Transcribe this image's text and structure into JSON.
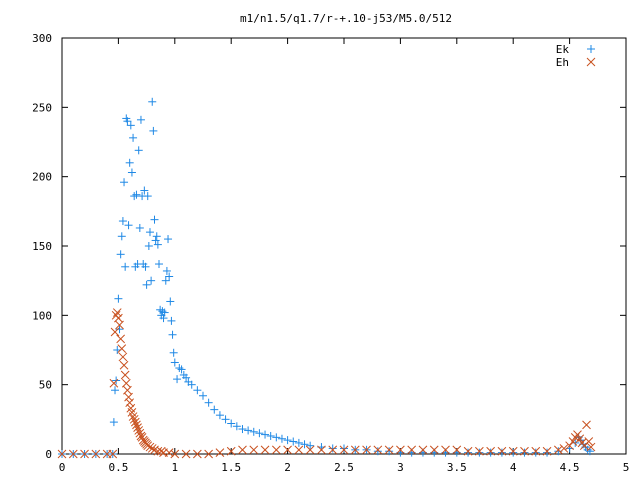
{
  "chart_data": {
    "type": "scatter",
    "title": "m1/n1.5/q1.7/r-+.10-j53/M5.0/512",
    "xlabel": "",
    "ylabel": "",
    "xlim": [
      0,
      5
    ],
    "ylim": [
      0,
      300
    ],
    "x_ticks": [
      "0",
      "0.5",
      "1",
      "1.5",
      "2",
      "2.5",
      "3",
      "3.5",
      "4",
      "4.5",
      "5"
    ],
    "y_ticks": [
      "0",
      "50",
      "100",
      "150",
      "200",
      "250",
      "300"
    ],
    "grid": false,
    "legend_position": "top-right",
    "series": [
      {
        "name": "Ek",
        "marker": "plus",
        "color": "#1E88E5",
        "points": [
          [
            0.0,
            0
          ],
          [
            0.1,
            0
          ],
          [
            0.2,
            0
          ],
          [
            0.3,
            0
          ],
          [
            0.4,
            0
          ],
          [
            0.45,
            0
          ],
          [
            0.46,
            23
          ],
          [
            0.47,
            46
          ],
          [
            0.48,
            53
          ],
          [
            0.49,
            75
          ],
          [
            0.5,
            112
          ],
          [
            0.51,
            90
          ],
          [
            0.52,
            144
          ],
          [
            0.53,
            157
          ],
          [
            0.54,
            168
          ],
          [
            0.55,
            196
          ],
          [
            0.56,
            135
          ],
          [
            0.57,
            242
          ],
          [
            0.58,
            240
          ],
          [
            0.59,
            165
          ],
          [
            0.6,
            210
          ],
          [
            0.61,
            237
          ],
          [
            0.62,
            203
          ],
          [
            0.63,
            228
          ],
          [
            0.64,
            186
          ],
          [
            0.65,
            135
          ],
          [
            0.66,
            187
          ],
          [
            0.67,
            137
          ],
          [
            0.68,
            219
          ],
          [
            0.69,
            163
          ],
          [
            0.7,
            241
          ],
          [
            0.71,
            186
          ],
          [
            0.72,
            137
          ],
          [
            0.73,
            190
          ],
          [
            0.74,
            135
          ],
          [
            0.75,
            122
          ],
          [
            0.76,
            186
          ],
          [
            0.77,
            150
          ],
          [
            0.78,
            160
          ],
          [
            0.79,
            125
          ],
          [
            0.8,
            254
          ],
          [
            0.81,
            233
          ],
          [
            0.82,
            169
          ],
          [
            0.83,
            154
          ],
          [
            0.84,
            157
          ],
          [
            0.85,
            151
          ],
          [
            0.86,
            137
          ],
          [
            0.87,
            104
          ],
          [
            0.88,
            100
          ],
          [
            0.89,
            103
          ],
          [
            0.9,
            98
          ],
          [
            0.91,
            102
          ],
          [
            0.92,
            125
          ],
          [
            0.93,
            132
          ],
          [
            0.94,
            155
          ],
          [
            0.95,
            128
          ],
          [
            0.96,
            110
          ],
          [
            0.97,
            96
          ],
          [
            0.98,
            86
          ],
          [
            0.99,
            73
          ],
          [
            1.0,
            66
          ],
          [
            1.02,
            54
          ],
          [
            1.04,
            62
          ],
          [
            1.06,
            61
          ],
          [
            1.08,
            57
          ],
          [
            1.1,
            55
          ],
          [
            1.12,
            52
          ],
          [
            1.15,
            50
          ],
          [
            1.2,
            46
          ],
          [
            1.25,
            42
          ],
          [
            1.3,
            37
          ],
          [
            1.35,
            32
          ],
          [
            1.4,
            28
          ],
          [
            1.45,
            25
          ],
          [
            1.5,
            22
          ],
          [
            1.55,
            20
          ],
          [
            1.6,
            18
          ],
          [
            1.65,
            17
          ],
          [
            1.7,
            16
          ],
          [
            1.75,
            15
          ],
          [
            1.8,
            14
          ],
          [
            1.85,
            13
          ],
          [
            1.9,
            12
          ],
          [
            1.95,
            11
          ],
          [
            2.0,
            10
          ],
          [
            2.05,
            9
          ],
          [
            2.1,
            8
          ],
          [
            2.15,
            7
          ],
          [
            2.2,
            6
          ],
          [
            2.3,
            5
          ],
          [
            2.4,
            4
          ],
          [
            2.5,
            4
          ],
          [
            2.6,
            3
          ],
          [
            2.7,
            3
          ],
          [
            2.8,
            2
          ],
          [
            2.9,
            2
          ],
          [
            3.0,
            1
          ],
          [
            3.1,
            1
          ],
          [
            3.2,
            1
          ],
          [
            3.3,
            1
          ],
          [
            3.4,
            1
          ],
          [
            3.5,
            1
          ],
          [
            3.6,
            1
          ],
          [
            3.7,
            1
          ],
          [
            3.8,
            1
          ],
          [
            3.9,
            1
          ],
          [
            4.0,
            1
          ],
          [
            4.1,
            1
          ],
          [
            4.2,
            1
          ],
          [
            4.3,
            1
          ],
          [
            4.4,
            2
          ],
          [
            4.5,
            4
          ],
          [
            4.55,
            8
          ],
          [
            4.58,
            12
          ],
          [
            4.6,
            10
          ],
          [
            4.62,
            7
          ],
          [
            4.64,
            5
          ],
          [
            4.66,
            3
          ],
          [
            4.68,
            2
          ]
        ]
      },
      {
        "name": "Eh",
        "marker": "cross",
        "color": "#C8501E",
        "points": [
          [
            0.0,
            0
          ],
          [
            0.1,
            0
          ],
          [
            0.2,
            0
          ],
          [
            0.3,
            0
          ],
          [
            0.4,
            0
          ],
          [
            0.45,
            0
          ],
          [
            0.46,
            51
          ],
          [
            0.47,
            88
          ],
          [
            0.48,
            100
          ],
          [
            0.49,
            102
          ],
          [
            0.5,
            98
          ],
          [
            0.51,
            93
          ],
          [
            0.52,
            83
          ],
          [
            0.53,
            76
          ],
          [
            0.54,
            70
          ],
          [
            0.55,
            64
          ],
          [
            0.56,
            57
          ],
          [
            0.57,
            51
          ],
          [
            0.58,
            46
          ],
          [
            0.59,
            41
          ],
          [
            0.6,
            37
          ],
          [
            0.61,
            33
          ],
          [
            0.62,
            30
          ],
          [
            0.63,
            27
          ],
          [
            0.64,
            25
          ],
          [
            0.65,
            23
          ],
          [
            0.66,
            21
          ],
          [
            0.67,
            19
          ],
          [
            0.68,
            17
          ],
          [
            0.69,
            15
          ],
          [
            0.7,
            13
          ],
          [
            0.71,
            12
          ],
          [
            0.72,
            10
          ],
          [
            0.73,
            9
          ],
          [
            0.74,
            8
          ],
          [
            0.75,
            7
          ],
          [
            0.76,
            6
          ],
          [
            0.78,
            5
          ],
          [
            0.8,
            4
          ],
          [
            0.82,
            3
          ],
          [
            0.85,
            2
          ],
          [
            0.88,
            2
          ],
          [
            0.9,
            1
          ],
          [
            0.95,
            1
          ],
          [
            1.0,
            0
          ],
          [
            1.1,
            0
          ],
          [
            1.2,
            0
          ],
          [
            1.3,
            0
          ],
          [
            1.4,
            1
          ],
          [
            1.5,
            2
          ],
          [
            1.6,
            3
          ],
          [
            1.7,
            3
          ],
          [
            1.8,
            3
          ],
          [
            1.9,
            3
          ],
          [
            2.0,
            3
          ],
          [
            2.1,
            3
          ],
          [
            2.2,
            3
          ],
          [
            2.3,
            3
          ],
          [
            2.4,
            3
          ],
          [
            2.5,
            3
          ],
          [
            2.6,
            3
          ],
          [
            2.7,
            3
          ],
          [
            2.8,
            3
          ],
          [
            2.9,
            3
          ],
          [
            3.0,
            3
          ],
          [
            3.1,
            3
          ],
          [
            3.2,
            3
          ],
          [
            3.3,
            3
          ],
          [
            3.4,
            3
          ],
          [
            3.5,
            3
          ],
          [
            3.6,
            2
          ],
          [
            3.7,
            2
          ],
          [
            3.8,
            2
          ],
          [
            3.9,
            2
          ],
          [
            4.0,
            2
          ],
          [
            4.1,
            2
          ],
          [
            4.2,
            2
          ],
          [
            4.3,
            2
          ],
          [
            4.4,
            3
          ],
          [
            4.45,
            4
          ],
          [
            4.5,
            6
          ],
          [
            4.53,
            9
          ],
          [
            4.55,
            12
          ],
          [
            4.57,
            14
          ],
          [
            4.59,
            11
          ],
          [
            4.61,
            8
          ],
          [
            4.63,
            6
          ],
          [
            4.65,
            21
          ],
          [
            4.67,
            9
          ],
          [
            4.69,
            5
          ]
        ]
      }
    ]
  }
}
